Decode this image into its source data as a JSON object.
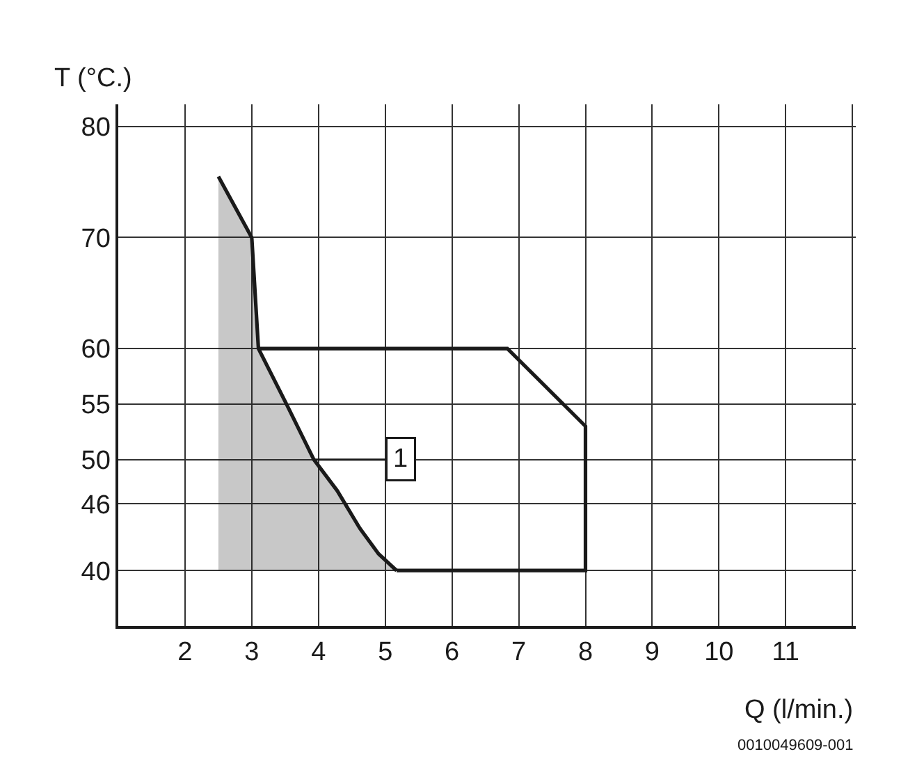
{
  "chart_data": {
    "type": "line",
    "ylabel": "T (°C.)",
    "xlabel": "Q (l/min.)",
    "xlim": [
      1,
      12.05
    ],
    "xticks": [
      2,
      3,
      4,
      5,
      6,
      7,
      8,
      9,
      10,
      11,
      {
        "value": 12,
        "label": null
      }
    ],
    "ylim": [
      35,
      82
    ],
    "yticks": [
      40,
      46,
      50,
      55,
      60,
      70,
      80
    ],
    "grid": true,
    "marker": "none",
    "line_style": "solid",
    "series": [
      {
        "color": "#1a1a1a",
        "x": [
          2.5,
          3.0,
          3.1,
          3.52,
          3.93,
          4.28,
          4.62,
          4.9,
          5.17
        ],
        "values": [
          75.5,
          70,
          60,
          55,
          50,
          47.2,
          43.8,
          41.5,
          40
        ],
        "lower": [
          40,
          40,
          40,
          40,
          40,
          40,
          40,
          40,
          40
        ],
        "upper": [
          75.5,
          70,
          60,
          55,
          50,
          47.2,
          43.8,
          41.5,
          40
        ]
      },
      {
        "color": "#1a1a1a",
        "x": [
          3.1,
          6.83,
          8,
          8,
          5.17
        ],
        "values": [
          60,
          60,
          53,
          40,
          40
        ]
      }
    ],
    "annotations": [
      {
        "text": "1",
        "x": 3.93,
        "y": 50
      },
      "0010049609-001"
    ]
  }
}
